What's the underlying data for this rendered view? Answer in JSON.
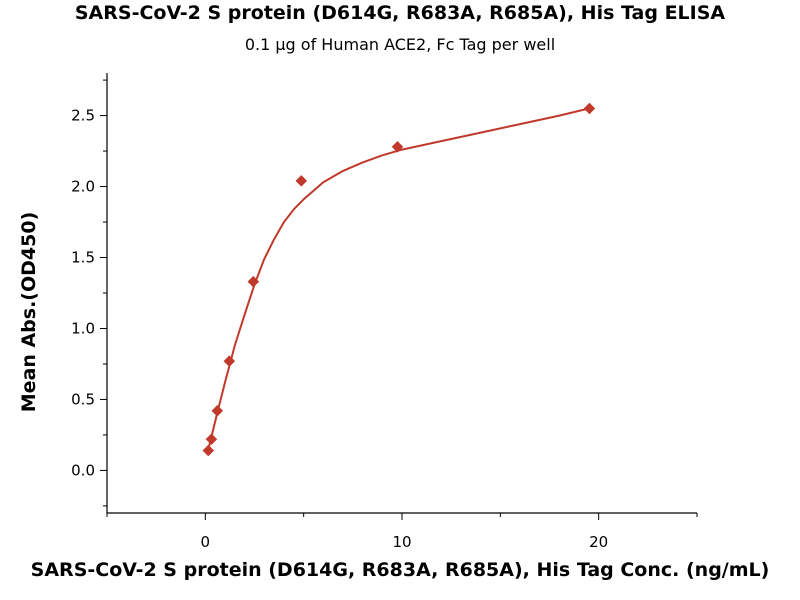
{
  "chart_data": {
    "type": "scatter",
    "title": "SARS-CoV-2 S protein (D614G, R683A, R685A), His Tag ELISA",
    "subtitle": "0.1 µg of Human ACE2, Fc Tag per well",
    "xlabel": "SARS-CoV-2 S protein (D614G, R683A, R685A), His Tag Conc. (ng/mL)",
    "ylabel": "Mean Abs.(OD450)",
    "xlim": [
      -5,
      25
    ],
    "ylim": [
      -0.3,
      2.8
    ],
    "x_ticks": [
      0,
      10,
      20
    ],
    "y_ticks": [
      0.0,
      0.5,
      1.0,
      1.5,
      2.0,
      2.5
    ],
    "x_tick_labels": [
      "0",
      "10",
      "20"
    ],
    "y_tick_labels": [
      "0.0",
      "0.5",
      "1.0",
      "1.5",
      "2.0",
      "2.5"
    ],
    "grid": false,
    "series": [
      {
        "x": [
          0.15,
          0.31,
          0.61,
          1.22,
          2.44,
          4.88,
          9.77,
          19.53
        ],
        "y": [
          0.14,
          0.22,
          0.42,
          0.77,
          1.33,
          2.04,
          2.28,
          2.55
        ],
        "marker": "diamond",
        "color": "#c0392b",
        "fit_curve": [
          [
            0.1,
            0.12
          ],
          [
            0.3,
            0.23
          ],
          [
            0.6,
            0.4
          ],
          [
            1.0,
            0.62
          ],
          [
            1.5,
            0.88
          ],
          [
            2.0,
            1.1
          ],
          [
            2.5,
            1.31
          ],
          [
            3.0,
            1.49
          ],
          [
            3.5,
            1.63
          ],
          [
            4.0,
            1.75
          ],
          [
            4.5,
            1.84
          ],
          [
            5.0,
            1.91
          ],
          [
            6.0,
            2.03
          ],
          [
            7.0,
            2.11
          ],
          [
            8.0,
            2.17
          ],
          [
            9.0,
            2.22
          ],
          [
            10.0,
            2.26
          ],
          [
            12.0,
            2.32
          ],
          [
            14.0,
            2.38
          ],
          [
            16.0,
            2.44
          ],
          [
            18.0,
            2.5
          ],
          [
            19.5,
            2.55
          ]
        ]
      }
    ]
  }
}
